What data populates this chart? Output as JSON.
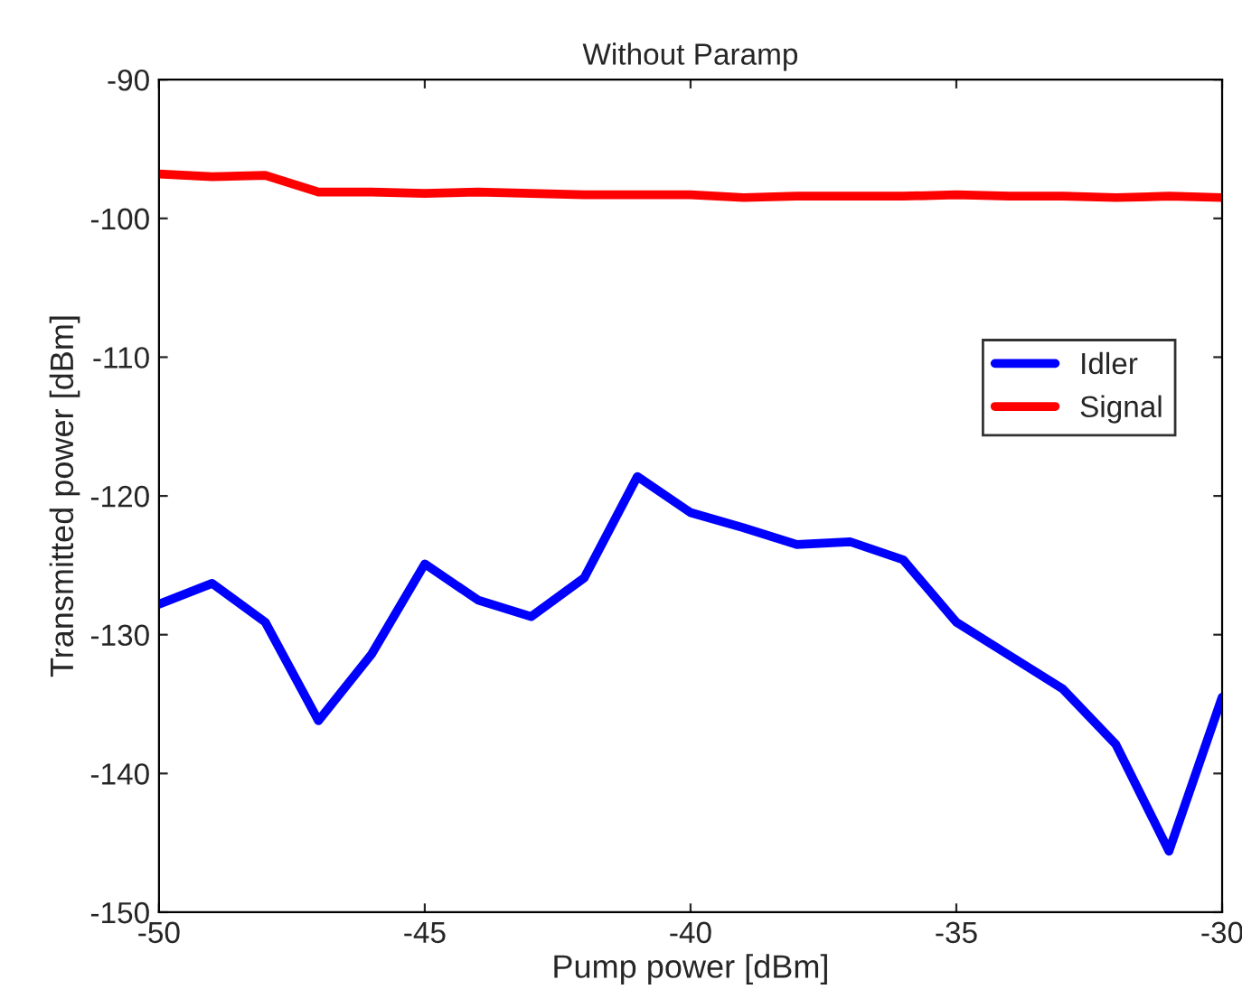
{
  "chart_data": {
    "type": "line",
    "title": "Without Paramp",
    "xlabel": "Pump power [dBm]",
    "ylabel": "Transmitted power [dBm]",
    "x": [
      -50,
      -49,
      -48,
      -47,
      -46,
      -45,
      -44,
      -43,
      -42,
      -41,
      -40,
      -39,
      -38,
      -37,
      -36,
      -35,
      -34,
      -33,
      -32,
      -31,
      -30
    ],
    "series": [
      {
        "name": "Idler",
        "color": "#0000ff",
        "values": [
          -127.8,
          -126.3,
          -129.1,
          -136.2,
          -131.4,
          -124.9,
          -127.5,
          -128.7,
          -125.9,
          -118.6,
          -121.2,
          -122.3,
          -123.5,
          -123.3,
          -124.6,
          -129.1,
          -131.5,
          -133.9,
          -137.9,
          -145.6,
          -134.5
        ]
      },
      {
        "name": "Signal",
        "color": "#ff0000",
        "values": [
          -96.8,
          -97.0,
          -96.9,
          -98.1,
          -98.1,
          -98.2,
          -98.1,
          -98.2,
          -98.3,
          -98.3,
          -98.3,
          -98.5,
          -98.4,
          -98.4,
          -98.4,
          -98.3,
          -98.4,
          -98.4,
          -98.5,
          -98.4,
          -98.5
        ]
      }
    ],
    "xlim": [
      -50,
      -30
    ],
    "xticks": [
      -50,
      -45,
      -40,
      -35,
      -30
    ],
    "ylim": [
      -150,
      -90
    ],
    "yticks": [
      -150,
      -140,
      -130,
      -120,
      -110,
      -100,
      -90
    ],
    "grid": false,
    "legend": "right",
    "line_style": "solid",
    "marker": "none"
  }
}
